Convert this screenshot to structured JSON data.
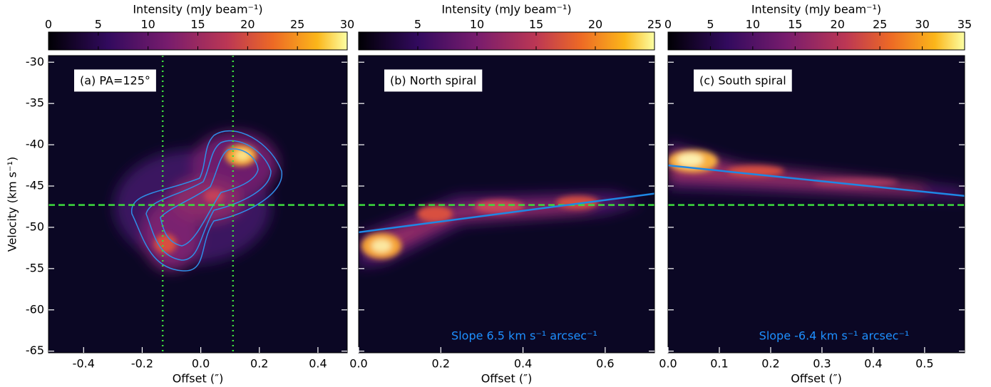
{
  "chart_data": [
    {
      "type": "image",
      "title": "(a) PA=125°",
      "ylabel": "Velocity (km s⁻¹)",
      "xlabel": "Offset (″)",
      "xlim": [
        -0.52,
        0.5
      ],
      "xticks": [
        -0.4,
        -0.2,
        {
          "value": 0,
          "label": "0.0"
        },
        0.2,
        0.4
      ],
      "ylim": [
        -65.2,
        -29.2
      ],
      "yticks": [
        -30,
        -35,
        -40,
        -45,
        -50,
        -55,
        -60,
        -65
      ],
      "colorbar": {
        "label": "Intensity (mJy beam⁻¹)",
        "lim": [
          0,
          30
        ],
        "ticks": [
          0,
          5,
          10,
          15,
          20,
          25,
          30
        ]
      },
      "hlines": [
        -47.3
      ],
      "hline_color": "#3ddc3d",
      "vlines": [
        -0.13,
        0.11
      ],
      "vline_color": "#3ddc3d"
    },
    {
      "type": "image",
      "title": "(b) North spiral",
      "xlabel": "Offset (″)",
      "xlim": [
        0,
        0.72
      ],
      "xticks": [
        {
          "value": 0,
          "label": "0.0"
        },
        0.2,
        0.4,
        0.6
      ],
      "ylim": [
        -65.2,
        -29.2
      ],
      "yticks": [
        -30,
        -35,
        -40,
        -45,
        -50,
        -55,
        -60,
        -65
      ],
      "colorbar": {
        "label": "Intensity (mJy beam⁻¹)",
        "lim": [
          0,
          25
        ],
        "ticks": [
          5,
          10,
          15,
          20,
          25
        ]
      },
      "hlines": [
        -47.3
      ],
      "hline_color": "#3ddc3d",
      "fit": {
        "x": [
          0,
          0.72
        ],
        "y": [
          -50.6,
          -45.92
        ],
        "color": "#1e88e5"
      },
      "annotation": "Slope 6.5 km s⁻¹ arcsec⁻¹"
    },
    {
      "type": "image",
      "title": "(c) South spiral",
      "xlabel": "Offset (″)",
      "xlim": [
        0,
        0.578
      ],
      "xticks": [
        {
          "value": 0,
          "label": "0.0"
        },
        0.1,
        0.2,
        0.3,
        0.4,
        0.5
      ],
      "ylim": [
        -65.2,
        -29.2
      ],
      "yticks": [
        -30,
        -35,
        -40,
        -45,
        -50,
        -55,
        -60,
        -65
      ],
      "colorbar": {
        "label": "Intensity (mJy beam⁻¹)",
        "lim": [
          0,
          35
        ],
        "ticks": [
          0,
          5,
          10,
          15,
          20,
          25,
          30,
          35
        ]
      },
      "hlines": [
        -47.3
      ],
      "hline_color": "#3ddc3d",
      "fit": {
        "x": [
          0,
          0.578
        ],
        "y": [
          -42.5,
          -46.2
        ],
        "color": "#1e88e5"
      },
      "annotation": "Slope -6.4 km s⁻¹ arcsec⁻¹"
    }
  ]
}
